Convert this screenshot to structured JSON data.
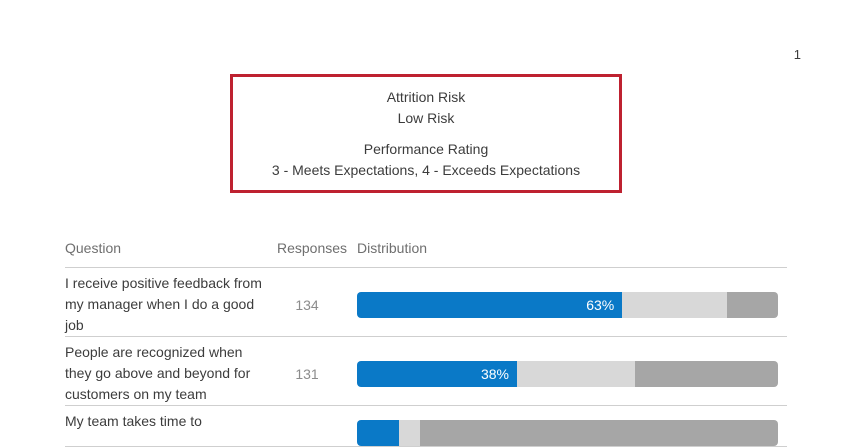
{
  "page": {
    "number": "1"
  },
  "summary_box": {
    "border_color": "#be2130",
    "attrition": {
      "label": "Attrition Risk",
      "value": "Low Risk"
    },
    "performance": {
      "label": "Performance Rating",
      "value": "3 - Meets Expectations, 4 - Exceeds Expectations"
    }
  },
  "table": {
    "headers": {
      "question": "Question",
      "responses": "Responses",
      "distribution": "Distribution"
    },
    "rows": [
      {
        "question": "I receive positive feedback from my manager when I do a good job",
        "responses": "134",
        "segments": [
          {
            "name": "favorable",
            "percent": 63,
            "label": "63%",
            "color": "#0a79c7"
          },
          {
            "name": "neutral",
            "percent": 25,
            "label": "",
            "color": "#d8d8d8"
          },
          {
            "name": "unfavorable",
            "percent": 12,
            "label": "",
            "color": "#a6a6a6"
          }
        ]
      },
      {
        "question": "People are recognized when they go above and beyond for customers on my team",
        "responses": "131",
        "segments": [
          {
            "name": "favorable",
            "percent": 38,
            "label": "38%",
            "color": "#0a79c7"
          },
          {
            "name": "neutral",
            "percent": 28,
            "label": "",
            "color": "#d8d8d8"
          },
          {
            "name": "unfavorable",
            "percent": 34,
            "label": "",
            "color": "#a6a6a6"
          }
        ]
      },
      {
        "question": "My team takes time to",
        "responses": "",
        "segments": [
          {
            "name": "favorable",
            "percent": 10,
            "label": "",
            "color": "#0a79c7"
          },
          {
            "name": "neutral",
            "percent": 5,
            "label": "",
            "color": "#d8d8d8"
          },
          {
            "name": "unfavorable",
            "percent": 85,
            "label": "",
            "color": "#a6a6a6"
          }
        ]
      }
    ]
  },
  "chart_data": {
    "type": "bar",
    "subtype": "stacked-horizontal-percentage",
    "categories": [
      "I receive positive feedback from my manager when I do a good job",
      "People are recognized when they go above and beyond for customers on my team",
      "My team takes time to"
    ],
    "series": [
      {
        "name": "favorable-blue",
        "values": [
          63,
          38,
          10
        ]
      },
      {
        "name": "neutral-light-gray",
        "values": [
          25,
          28,
          5
        ]
      },
      {
        "name": "unfavorable-dark-gray",
        "values": [
          12,
          34,
          85
        ]
      }
    ],
    "responses": [
      134,
      131,
      null
    ],
    "xlim": [
      0,
      100
    ],
    "legend": "none",
    "grid": false
  }
}
